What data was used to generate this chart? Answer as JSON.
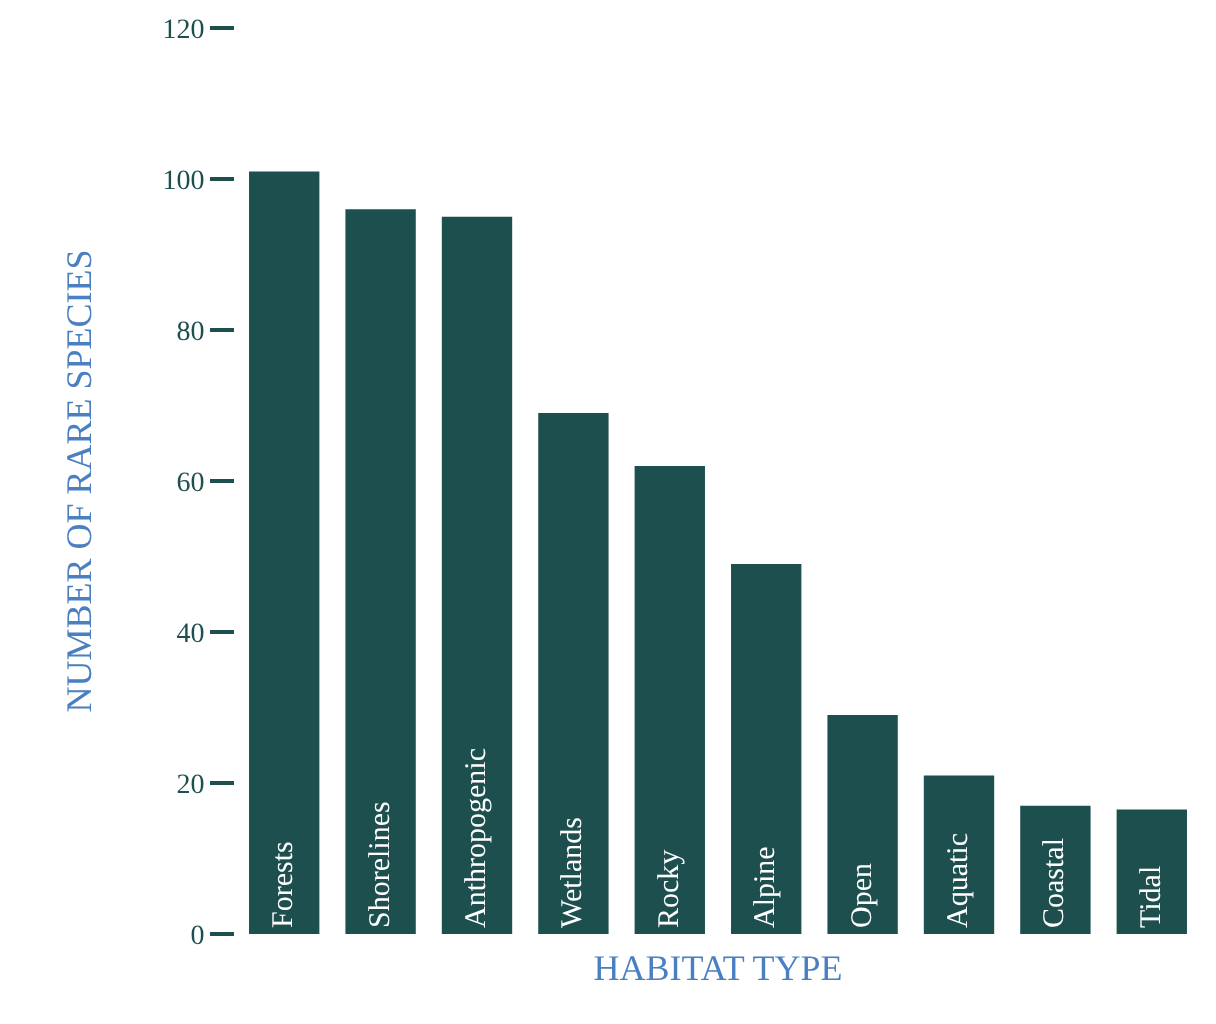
{
  "chart_data": {
    "type": "bar",
    "xlabel": "HABITAT TYPE",
    "ylabel": "NUMBER OF RARE SPECIES",
    "categories": [
      "Forests",
      "Shorelines",
      "Anthropogenic",
      "Wetlands",
      "Rocky",
      "Alpine",
      "Open",
      "Aquatic",
      "Coastal",
      "Tidal"
    ],
    "values": [
      101,
      96,
      95,
      69,
      62,
      49,
      29,
      21,
      17,
      16.5
    ],
    "color": "#1e4f4f",
    "ylim": [
      0,
      120
    ],
    "yticks": [
      0,
      20,
      40,
      60,
      80,
      100,
      120
    ],
    "grid": false,
    "tick_labels": "y"
  }
}
